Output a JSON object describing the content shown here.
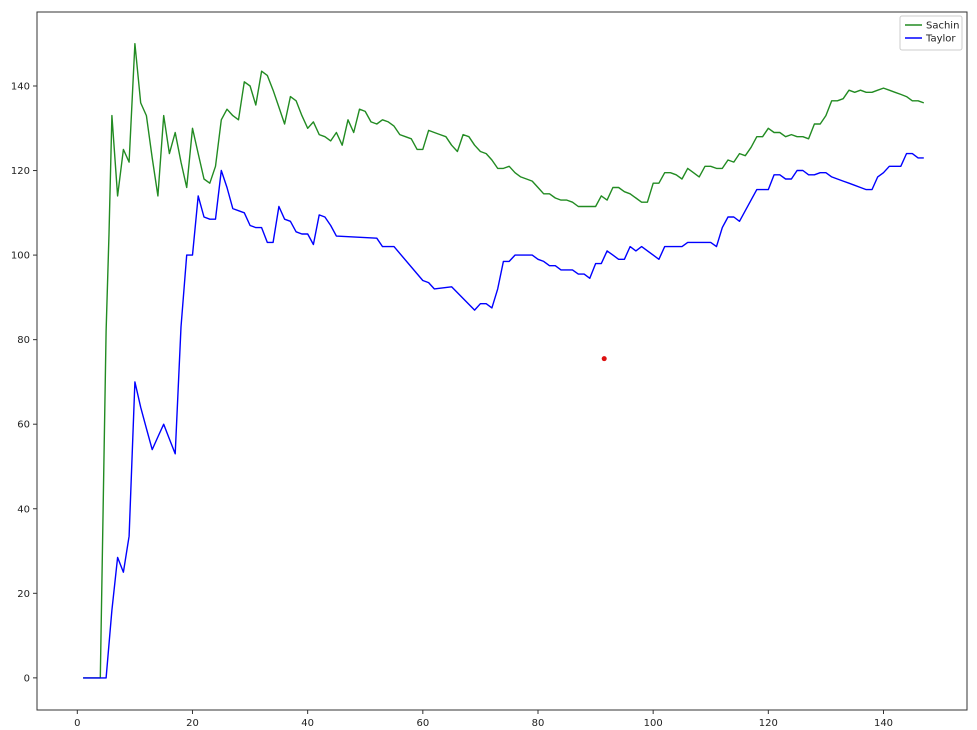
{
  "chart_data": {
    "type": "line",
    "title": "",
    "xlabel": "",
    "ylabel": "",
    "xlim": [
      -7,
      154.5
    ],
    "ylim": [
      -7.6,
      157.5
    ],
    "xticks": [
      0,
      20,
      40,
      60,
      80,
      100,
      120,
      140
    ],
    "yticks": [
      0,
      20,
      40,
      60,
      80,
      100,
      120,
      140
    ],
    "grid": false,
    "legend": "top-right",
    "series": [
      {
        "name": "Sachin",
        "color": "#228b22",
        "points": [
          [
            1,
            0
          ],
          [
            2,
            0
          ],
          [
            3,
            0
          ],
          [
            4,
            0
          ],
          [
            5,
            82
          ],
          [
            5.5,
            105
          ],
          [
            6,
            133
          ],
          [
            7,
            114
          ],
          [
            8,
            125
          ],
          [
            9,
            122
          ],
          [
            10,
            150
          ],
          [
            11,
            136
          ],
          [
            12,
            133
          ],
          [
            13,
            123
          ],
          [
            14,
            114
          ],
          [
            15,
            133
          ],
          [
            16,
            124
          ],
          [
            17,
            129
          ],
          [
            18,
            122
          ],
          [
            19,
            116
          ],
          [
            20,
            130
          ],
          [
            21,
            124
          ],
          [
            22,
            118
          ],
          [
            23,
            117
          ],
          [
            24,
            121
          ],
          [
            25,
            132
          ],
          [
            26,
            134.5
          ],
          [
            27,
            133
          ],
          [
            28,
            132
          ],
          [
            29,
            141
          ],
          [
            30,
            140
          ],
          [
            31,
            135.5
          ],
          [
            32,
            143.5
          ],
          [
            33,
            142.5
          ],
          [
            34,
            139
          ],
          [
            35,
            135
          ],
          [
            36,
            131
          ],
          [
            37,
            137.5
          ],
          [
            38,
            136.5
          ],
          [
            39,
            133
          ],
          [
            40,
            130
          ],
          [
            41,
            131.5
          ],
          [
            42,
            128.5
          ],
          [
            43,
            128
          ],
          [
            44,
            127
          ],
          [
            45,
            129
          ],
          [
            46,
            126
          ],
          [
            47,
            132
          ],
          [
            48,
            129
          ],
          [
            49,
            134.5
          ],
          [
            50,
            134
          ],
          [
            51,
            131.5
          ],
          [
            52,
            131
          ],
          [
            53,
            132
          ],
          [
            54,
            131.5
          ],
          [
            55,
            130.5
          ],
          [
            56,
            128.5
          ],
          [
            57,
            128
          ],
          [
            58,
            127.5
          ],
          [
            59,
            125
          ],
          [
            60,
            125
          ],
          [
            61,
            129.5
          ],
          [
            62,
            129
          ],
          [
            63,
            128.5
          ],
          [
            64,
            128
          ],
          [
            65,
            126
          ],
          [
            66,
            124.5
          ],
          [
            67,
            128.5
          ],
          [
            68,
            128
          ],
          [
            69,
            126
          ],
          [
            70,
            124.5
          ],
          [
            71,
            124
          ],
          [
            72,
            122.5
          ],
          [
            73,
            120.5
          ],
          [
            74,
            120.5
          ],
          [
            75,
            121
          ],
          [
            76,
            119.5
          ],
          [
            77,
            118.5
          ],
          [
            78,
            118
          ],
          [
            79,
            117.5
          ],
          [
            80,
            116
          ],
          [
            81,
            114.5
          ],
          [
            82,
            114.5
          ],
          [
            83,
            113.5
          ],
          [
            84,
            113
          ],
          [
            85,
            113
          ],
          [
            86,
            112.5
          ],
          [
            87,
            111.5
          ],
          [
            88,
            111.5
          ],
          [
            89,
            111.5
          ],
          [
            90,
            111.5
          ],
          [
            91,
            114
          ],
          [
            92,
            113
          ],
          [
            93,
            116
          ],
          [
            94,
            116
          ],
          [
            95,
            115
          ],
          [
            96,
            114.5
          ],
          [
            97,
            113.5
          ],
          [
            98,
            112.5
          ],
          [
            99,
            112.5
          ],
          [
            100,
            117
          ],
          [
            101,
            117
          ],
          [
            102,
            119.5
          ],
          [
            103,
            119.5
          ],
          [
            104,
            119
          ],
          [
            105,
            118
          ],
          [
            106,
            120.5
          ],
          [
            107,
            119.5
          ],
          [
            108,
            118.5
          ],
          [
            109,
            121
          ],
          [
            110,
            121
          ],
          [
            111,
            120.5
          ],
          [
            112,
            120.5
          ],
          [
            113,
            122.5
          ],
          [
            114,
            122
          ],
          [
            115,
            124
          ],
          [
            116,
            123.5
          ],
          [
            117,
            125.5
          ],
          [
            118,
            128
          ],
          [
            119,
            128
          ],
          [
            120,
            130
          ],
          [
            121,
            129
          ],
          [
            122,
            129
          ],
          [
            123,
            128
          ],
          [
            124,
            128.5
          ],
          [
            125,
            128
          ],
          [
            126,
            128
          ],
          [
            127,
            127.5
          ],
          [
            128,
            131
          ],
          [
            129,
            131
          ],
          [
            130,
            133
          ],
          [
            131,
            136.5
          ],
          [
            132,
            136.5
          ],
          [
            133,
            137
          ],
          [
            134,
            139
          ],
          [
            135,
            138.5
          ],
          [
            136,
            139
          ],
          [
            137,
            138.5
          ],
          [
            138,
            138.5
          ],
          [
            139,
            139
          ],
          [
            140,
            139.5
          ],
          [
            141,
            139
          ],
          [
            142,
            138.5
          ],
          [
            143,
            138
          ],
          [
            144,
            137.5
          ],
          [
            145,
            136.5
          ],
          [
            146,
            136.5
          ],
          [
            147,
            136
          ]
        ]
      },
      {
        "name": "Taylor",
        "color": "#0000ff",
        "points": [
          [
            1,
            0
          ],
          [
            2,
            0
          ],
          [
            3,
            0
          ],
          [
            4,
            0
          ],
          [
            5,
            0
          ],
          [
            6,
            16
          ],
          [
            7,
            28.5
          ],
          [
            8,
            25
          ],
          [
            9,
            33.5
          ],
          [
            10,
            70
          ],
          [
            11,
            64
          ],
          [
            12,
            59
          ],
          [
            13,
            54
          ],
          [
            14,
            57
          ],
          [
            15,
            60
          ],
          [
            16,
            56.5
          ],
          [
            17,
            53
          ],
          [
            18,
            83
          ],
          [
            19,
            100
          ],
          [
            20,
            100
          ],
          [
            21,
            114
          ],
          [
            22,
            109
          ],
          [
            23,
            108.5
          ],
          [
            24,
            108.5
          ],
          [
            25,
            120
          ],
          [
            26,
            116
          ],
          [
            27,
            111
          ],
          [
            28,
            110.5
          ],
          [
            29,
            110
          ],
          [
            30,
            107
          ],
          [
            31,
            106.5
          ],
          [
            32,
            106.5
          ],
          [
            33,
            103
          ],
          [
            34,
            103
          ],
          [
            35,
            111.5
          ],
          [
            36,
            108.5
          ],
          [
            37,
            108
          ],
          [
            38,
            105.5
          ],
          [
            39,
            105
          ],
          [
            40,
            105
          ],
          [
            41,
            102.5
          ],
          [
            42,
            109.5
          ],
          [
            43,
            109
          ],
          [
            44,
            107
          ],
          [
            45,
            104.5
          ],
          [
            52,
            104
          ],
          [
            53,
            102
          ],
          [
            54,
            102
          ],
          [
            55,
            102
          ],
          [
            60,
            94
          ],
          [
            61,
            93.5
          ],
          [
            62,
            92
          ],
          [
            65,
            92.5
          ],
          [
            69,
            87
          ],
          [
            70,
            88.5
          ],
          [
            71,
            88.5
          ],
          [
            72,
            87.5
          ],
          [
            73,
            92
          ],
          [
            74,
            98.5
          ],
          [
            75,
            98.5
          ],
          [
            76,
            100
          ],
          [
            79,
            100
          ],
          [
            80,
            99
          ],
          [
            81,
            98.5
          ],
          [
            82,
            97.5
          ],
          [
            83,
            97.5
          ],
          [
            84,
            96.5
          ],
          [
            86,
            96.5
          ],
          [
            87,
            95.5
          ],
          [
            88,
            95.5
          ],
          [
            89,
            94.5
          ],
          [
            90,
            98
          ],
          [
            91,
            98
          ],
          [
            92,
            101
          ],
          [
            93,
            100
          ],
          [
            94,
            99
          ],
          [
            95,
            99
          ],
          [
            96,
            102
          ],
          [
            97,
            101
          ],
          [
            98,
            102
          ],
          [
            100,
            100
          ],
          [
            101,
            99
          ],
          [
            102,
            102
          ],
          [
            105,
            102
          ],
          [
            106,
            103
          ],
          [
            110,
            103
          ],
          [
            111,
            102
          ],
          [
            112,
            106.5
          ],
          [
            113,
            109
          ],
          [
            114,
            109
          ],
          [
            115,
            108
          ],
          [
            118,
            115.5
          ],
          [
            120,
            115.5
          ],
          [
            121,
            119
          ],
          [
            122,
            119
          ],
          [
            123,
            118
          ],
          [
            124,
            118
          ],
          [
            125,
            120
          ],
          [
            126,
            120
          ],
          [
            127,
            119
          ],
          [
            128,
            119
          ],
          [
            129,
            119.5
          ],
          [
            130,
            119.5
          ],
          [
            131,
            118.5
          ],
          [
            132,
            118
          ],
          [
            133,
            117.5
          ],
          [
            134,
            117
          ],
          [
            135,
            116.5
          ],
          [
            136,
            116
          ],
          [
            137,
            115.5
          ],
          [
            138,
            115.5
          ],
          [
            139,
            118.5
          ],
          [
            140,
            119.5
          ],
          [
            141,
            121
          ],
          [
            142,
            121
          ],
          [
            143,
            121
          ],
          [
            144,
            124
          ],
          [
            145,
            124
          ],
          [
            146,
            123
          ],
          [
            147,
            123
          ]
        ]
      }
    ],
    "markers": [
      {
        "x": 91.5,
        "y": 75.5,
        "color": "#dd1111"
      }
    ]
  }
}
